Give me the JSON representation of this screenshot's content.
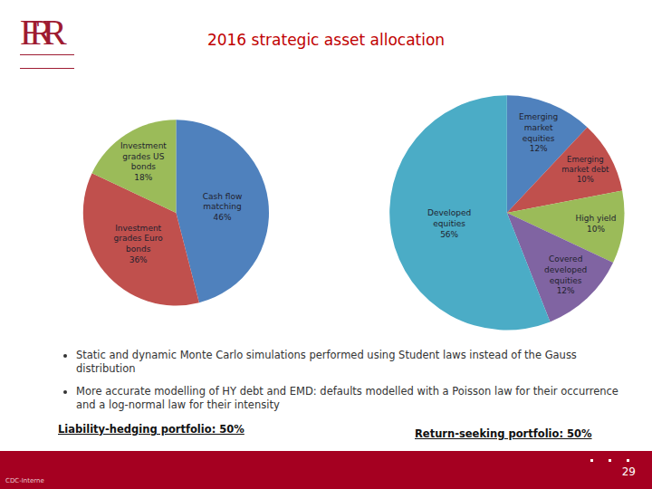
{
  "logo": "FRR",
  "title": "2016 strategic asset allocation",
  "chart_data": [
    {
      "type": "pie",
      "categories": [
        "Cash flow matching",
        "Investment grades Euro bonds",
        "Investment grades US bonds"
      ],
      "values": [
        46,
        36,
        18
      ],
      "value_labels": [
        "46%",
        "36%",
        "18%"
      ],
      "colors": [
        "#4f81bd",
        "#c0504d",
        "#9bbb59"
      ],
      "data_labels": true
    },
    {
      "type": "pie",
      "categories": [
        "Emerging market equities",
        "Emerging market debt",
        "High yield",
        "Covered developed equities",
        "Developed equities"
      ],
      "values": [
        12,
        10,
        10,
        12,
        56
      ],
      "value_labels": [
        "12%",
        "10%",
        "10%",
        "12%",
        "56%"
      ],
      "colors": [
        "#4f81bd",
        "#c0504d",
        "#9bbb59",
        "#8064a2",
        "#4bacc6"
      ],
      "data_labels": true
    }
  ],
  "bullets": [
    "Static and dynamic Monte Carlo simulations performed using Student laws instead of the Gauss distribution",
    "More accurate modelling of HY debt and EMD: defaults modelled with a Poisson law for their occurrence and a log-normal law for their intensity"
  ],
  "captions": [
    "Liability-hedging portfolio: 50%",
    "Return-seeking portfolio: 50%"
  ],
  "footer": {
    "left": "CDC-Interne",
    "page": "29"
  }
}
